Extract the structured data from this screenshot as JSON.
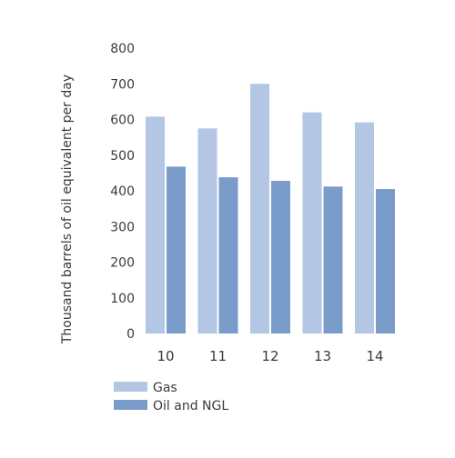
{
  "chart_data": {
    "type": "bar",
    "categories": [
      "10",
      "11",
      "12",
      "13",
      "14"
    ],
    "series": [
      {
        "name": "Gas",
        "values": [
          608,
          575,
          700,
          620,
          592
        ],
        "color": "#b3c6e3"
      },
      {
        "name": "Oil and NGL",
        "values": [
          468,
          438,
          428,
          412,
          405
        ],
        "color": "#7a9ccb"
      }
    ],
    "ylabel": "Thousand barrels of oil equivalent per day",
    "xlabel": "",
    "ylim": [
      0,
      800
    ],
    "yticks": [
      0,
      100,
      200,
      300,
      400,
      500,
      600,
      700,
      800
    ],
    "grid": false,
    "legend_position": "bottom-left"
  }
}
